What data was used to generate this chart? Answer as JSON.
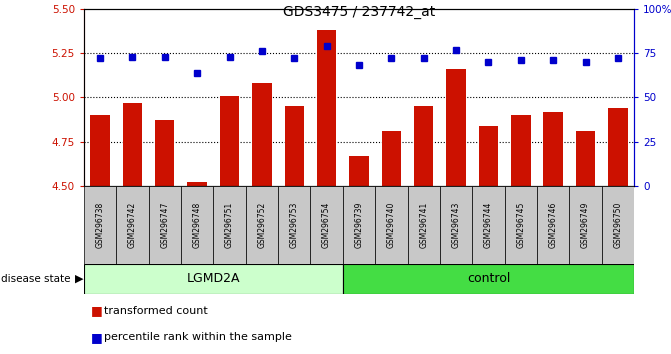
{
  "title": "GDS3475 / 237742_at",
  "samples": [
    "GSM296738",
    "GSM296742",
    "GSM296747",
    "GSM296748",
    "GSM296751",
    "GSM296752",
    "GSM296753",
    "GSM296754",
    "GSM296739",
    "GSM296740",
    "GSM296741",
    "GSM296743",
    "GSM296744",
    "GSM296745",
    "GSM296746",
    "GSM296749",
    "GSM296750"
  ],
  "red_values": [
    4.9,
    4.97,
    4.87,
    4.52,
    5.01,
    5.08,
    4.95,
    5.38,
    4.67,
    4.81,
    4.95,
    5.16,
    4.84,
    4.9,
    4.92,
    4.81,
    4.94
  ],
  "blue_values": [
    72,
    73,
    73,
    64,
    73,
    76,
    72,
    79,
    68,
    72,
    72,
    77,
    70,
    71,
    71,
    70,
    72
  ],
  "groups": [
    "LGMD2A",
    "LGMD2A",
    "LGMD2A",
    "LGMD2A",
    "LGMD2A",
    "LGMD2A",
    "LGMD2A",
    "LGMD2A",
    "control",
    "control",
    "control",
    "control",
    "control",
    "control",
    "control",
    "control",
    "control"
  ],
  "ylim_left": [
    4.5,
    5.5
  ],
  "ylim_right": [
    0,
    100
  ],
  "yticks_left": [
    4.5,
    4.75,
    5.0,
    5.25,
    5.5
  ],
  "yticks_right": [
    0,
    25,
    50,
    75,
    100
  ],
  "ytick_labels_right": [
    "0",
    "25",
    "50",
    "75",
    "100%"
  ],
  "bar_color": "#cc1100",
  "dot_color": "#0000cc",
  "lgmd2a_color": "#ccffcc",
  "control_color": "#44dd44",
  "sample_box_color": "#c8c8c8",
  "lgmd2a_label": "LGMD2A",
  "control_label": "control",
  "disease_state_label": "disease state",
  "legend_red": "transformed count",
  "legend_blue": "percentile rank within the sample",
  "title_fontsize": 10,
  "tick_fontsize": 7.5,
  "sample_fontsize": 5.5,
  "group_fontsize": 9,
  "legend_fontsize": 8
}
